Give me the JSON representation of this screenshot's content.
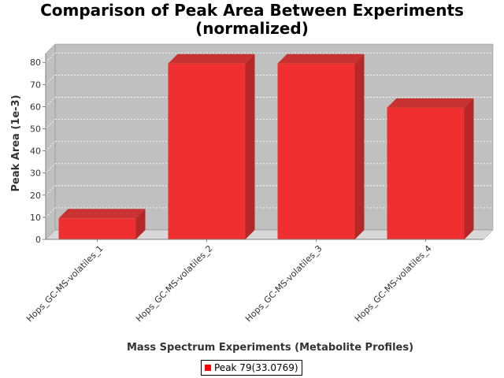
{
  "chart_data": {
    "type": "bar",
    "title_line1": "Comparison of Peak Area Between Experiments",
    "title_line2": "(normalized)",
    "xlabel": "Mass Spectrum Experiments (Metabolite Profiles)",
    "ylabel": "Peak Area (1e-3)",
    "categories": [
      "Hops_GC-MS-volatiles_1",
      "Hops_GC-MS-volatiles_2",
      "Hops_GC-MS-volatiles_3",
      "Hops_GC-MS-volatiles_4"
    ],
    "series": [
      {
        "name": "Peak 79(33.0769)",
        "values": [
          9.5,
          79.5,
          79.5,
          59.5
        ]
      }
    ],
    "ylim": [
      0,
      84
    ],
    "yticks": [
      0,
      10,
      20,
      30,
      40,
      50,
      60,
      70,
      80
    ],
    "grid": true,
    "legend_position": "bottom",
    "colors": {
      "bar_front": "#f03030",
      "bar_top": "#c83232",
      "bar_side": "#b42828",
      "plot_bg": "#c0c0c0",
      "plot_floor": "#d8d8d8",
      "grid": "#ffffff",
      "legend_swatch": "#ff0000"
    }
  }
}
